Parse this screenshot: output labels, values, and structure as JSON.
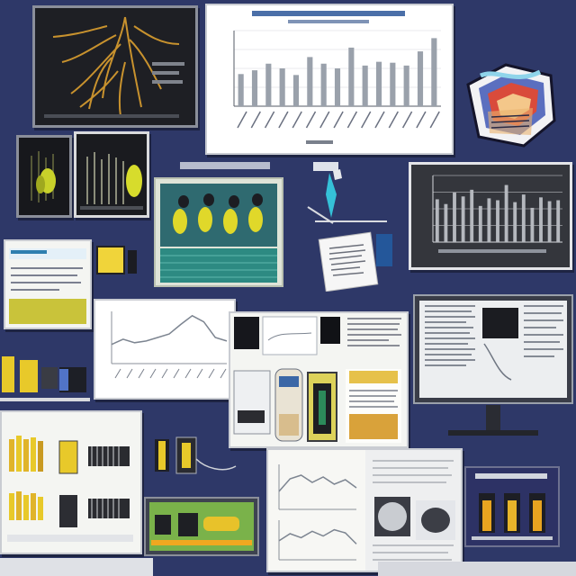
{
  "chart_data": [
    {
      "type": "bar",
      "categories": [
        "1",
        "2",
        "3",
        "4",
        "5",
        "6",
        "7",
        "8",
        "9",
        "10",
        "11",
        "12",
        "13",
        "14",
        "15"
      ],
      "values": [
        34,
        38,
        45,
        40,
        33,
        52,
        45,
        40,
        62,
        43,
        47,
        46,
        43,
        58,
        72
      ],
      "ylim": [
        0,
        80
      ],
      "grid": true,
      "colors": {
        "bar": "#9aa1ab",
        "axis": "#555b66",
        "grid": "#d3d6db",
        "background": "#ffffff"
      }
    },
    {
      "type": "bar",
      "categories": [
        "1",
        "2",
        "3",
        "4",
        "5",
        "6",
        "7",
        "8",
        "9",
        "10",
        "11",
        "12",
        "13",
        "14",
        "15"
      ],
      "values": [
        45,
        40,
        52,
        48,
        55,
        38,
        46,
        44,
        60,
        42,
        50,
        36,
        47,
        43,
        44
      ],
      "ylim": [
        0,
        70
      ],
      "grid": true,
      "colors": {
        "bar": "#b5b8be",
        "axis": "#d6d8dc",
        "background": "#34363c"
      }
    },
    {
      "type": "line",
      "x": [
        0,
        1,
        2,
        3,
        4,
        5,
        6,
        7,
        8,
        9,
        10
      ],
      "values": [
        22,
        28,
        24,
        26,
        30,
        34,
        45,
        55,
        48,
        30,
        26
      ],
      "ylim": [
        0,
        60
      ],
      "colors": {
        "line": "#7d8591"
      }
    },
    {
      "type": "line",
      "x": [
        0,
        1,
        2,
        3,
        4,
        5,
        6,
        7
      ],
      "values": [
        20,
        34,
        38,
        30,
        36,
        28,
        33,
        24
      ],
      "ylim": [
        0,
        50
      ],
      "colors": {
        "line": "#7d8591"
      }
    }
  ],
  "colors": {
    "background": "#2e3868",
    "yellow": "#e8c92a",
    "olive": "#8f9c2c",
    "teal": "#2e8f8a",
    "green": "#7ab24a"
  },
  "icons": [
    "robot-arm-icon",
    "tablet-icon",
    "machine-part-icon",
    "monitor-icon"
  ]
}
